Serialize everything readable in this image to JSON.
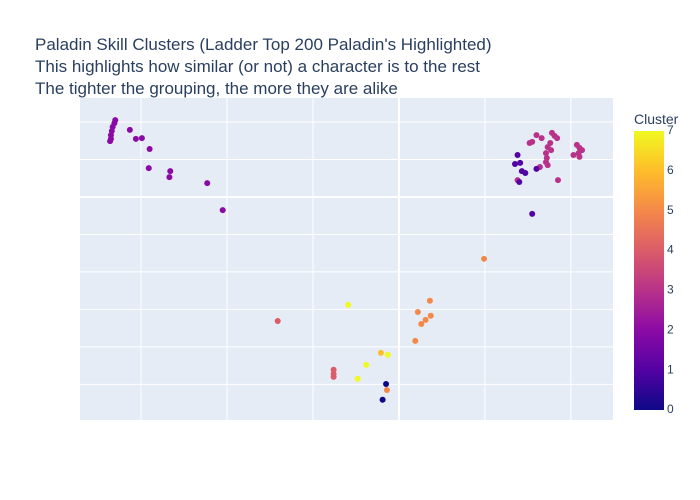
{
  "chart_data": {
    "type": "scatter",
    "title_lines": [
      "Paladin Skill Clusters (Ladder Top 200 Paladin's Highlighted)",
      "This highlights how similar (or not) a character is to the rest",
      "The tighter the grouping, the more they are alike"
    ],
    "xlim": [
      -37.1,
      24.9
    ],
    "ylim": [
      -59.5,
      26.4
    ],
    "xticks": [
      -30,
      -20,
      -10,
      0,
      10,
      20
    ],
    "yticks": [
      -50,
      -40,
      -30,
      -20,
      -10,
      0,
      10,
      20
    ],
    "grid": true,
    "colorscale": [
      "#0d0887",
      "#5302a3",
      "#8b0aa5",
      "#b83289",
      "#db5c68",
      "#f48849",
      "#febd2a",
      "#f0f921"
    ],
    "colorbar": {
      "title": "Cluster",
      "range": [
        0,
        7
      ],
      "ticks": [
        0,
        1,
        2,
        3,
        4,
        5,
        6,
        7
      ]
    },
    "x": [
      -33.0,
      -33.1,
      -33.3,
      -33.4,
      -33.5,
      -33.5,
      -33.6,
      -31.3,
      -30.6,
      -29.9,
      -29.0,
      -29.1,
      -26.6,
      -26.7,
      -22.3,
      -20.5,
      16.0,
      16.6,
      17.8,
      18.1,
      18.4,
      17.6,
      17.3,
      17.7,
      17.1,
      17.2,
      17.1,
      17.3,
      16.4,
      15.2,
      15.5,
      20.7,
      21.0,
      21.3,
      20.9,
      21.0,
      20.3,
      18.5,
      13.8,
      13.5,
      14.1,
      14.3,
      14.7,
      16.0,
      14.0,
      13.8,
      15.5,
      -1.5,
      -1.9,
      -14.1,
      -7.6,
      -7.6,
      -7.6,
      9.9,
      3.6,
      2.2,
      3.7,
      3.1,
      2.6,
      1.9,
      -1.4,
      -2.1,
      -5.9,
      -1.3,
      -3.8,
      -4.8
    ],
    "y": [
      20.5,
      19.7,
      18.7,
      17.6,
      16.5,
      15.5,
      14.9,
      17.9,
      15.5,
      15.7,
      12.8,
      7.7,
      6.9,
      5.3,
      3.7,
      -3.5,
      16.5,
      15.7,
      17.1,
      16.3,
      15.7,
      14.4,
      13.3,
      12.5,
      11.7,
      10.4,
      9.3,
      8.5,
      8.0,
      14.4,
      14.7,
      13.9,
      13.1,
      12.5,
      11.7,
      10.7,
      11.2,
      4.5,
      4.5,
      8.8,
      9.1,
      6.9,
      6.4,
      7.5,
      4.0,
      11.2,
      -4.5,
      -49.9,
      -54.1,
      -33.1,
      -46.1,
      -47.2,
      -48.0,
      -16.5,
      -27.7,
      -30.7,
      -31.7,
      -32.8,
      -33.9,
      -38.4,
      -51.5,
      -41.6,
      -28.8,
      -42.1,
      -44.8,
      -48.5
    ],
    "cluster": [
      2,
      2,
      2,
      2,
      2,
      2,
      2,
      2,
      2,
      2,
      2,
      2,
      2,
      2,
      2,
      2,
      3,
      3,
      3,
      3,
      3,
      3,
      3,
      3,
      3,
      3,
      3,
      3,
      3,
      3,
      3,
      3,
      3,
      3,
      3,
      3,
      3,
      3,
      3,
      1,
      1,
      1,
      1,
      1,
      1,
      1,
      1,
      0,
      0,
      4,
      4,
      4,
      4,
      5,
      5,
      5,
      5,
      5,
      5,
      5,
      5,
      6,
      7,
      7,
      7,
      7
    ]
  }
}
